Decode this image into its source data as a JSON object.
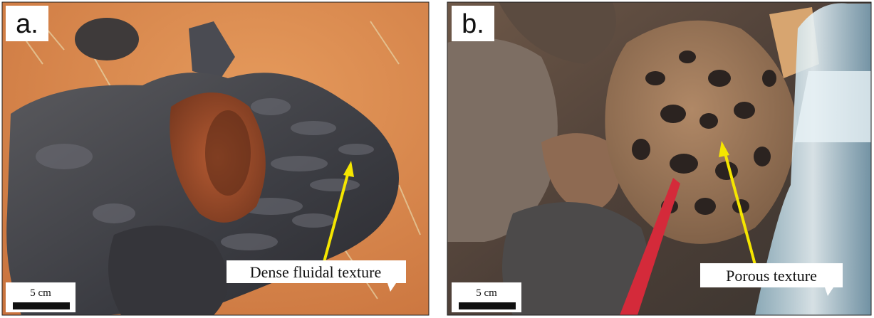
{
  "panels": [
    {
      "label": "a.",
      "annotation": "Dense fluidal texture",
      "scale": "5 cm"
    },
    {
      "label": "b.",
      "annotation": "Porous texture",
      "scale": "5 cm"
    }
  ]
}
